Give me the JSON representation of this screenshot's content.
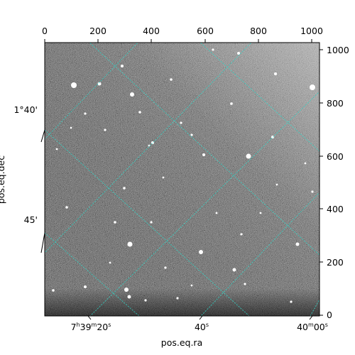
{
  "figure": {
    "x_axis_label": "pos.eq.ra",
    "y_axis_label": "pos.eq.dec",
    "pixel_x_ticks": [
      "0",
      "200",
      "400",
      "600",
      "800",
      "1000"
    ],
    "pixel_y_ticks": [
      "0",
      "200",
      "400",
      "600",
      "800",
      "1000"
    ],
    "ra_ticks": [
      {
        "h": "7",
        "hs": "h",
        "m": "39",
        "ms": "m",
        "s": "20",
        "ss": "s"
      },
      {
        "h": "",
        "hs": "",
        "m": "",
        "ms": "",
        "s": "40",
        "ss": "s"
      },
      {
        "h": "",
        "hs": "",
        "m": "40",
        "ms": "m",
        "s": "00",
        "ss": "s"
      }
    ],
    "dec_ticks": [
      "1°40'",
      "45'"
    ],
    "image_description": "grayscale astronomical CCD frame with star field and cyan RA/Dec coordinate grid overlay",
    "grid_color": "#2fd6c8"
  }
}
